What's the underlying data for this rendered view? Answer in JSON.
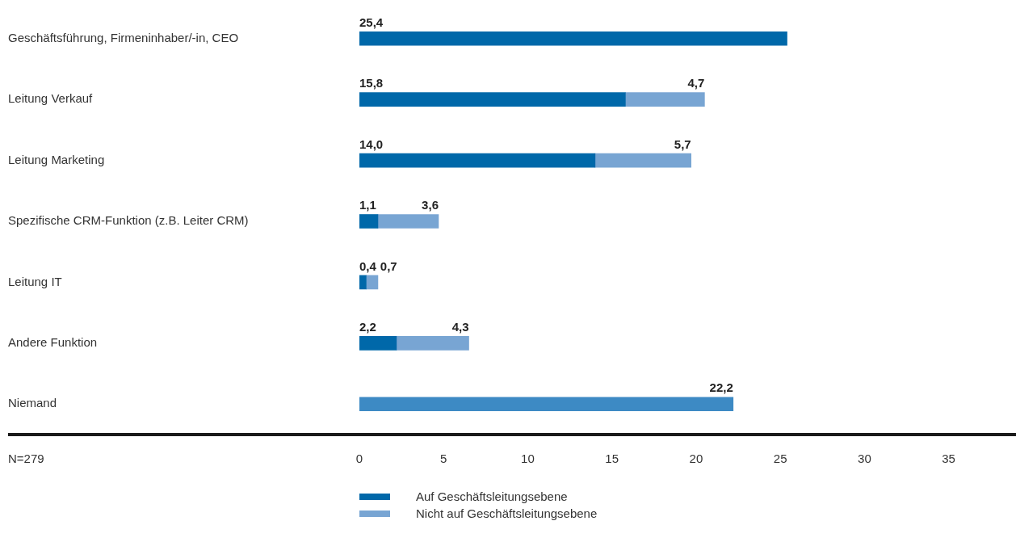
{
  "chart_data": {
    "type": "bar",
    "orientation": "horizontal",
    "stacked": true,
    "categories": [
      "Geschäftsführung, Firmeninhaber/-in, CEO",
      "Leitung Verkauf",
      "Leitung Marketing",
      "Spezifische CRM-Funktion (z.B. Leiter CRM)",
      "Leitung IT",
      "Andere Funktion",
      "Niemand"
    ],
    "series": [
      {
        "name": "Auf Geschäftsleitungsebene",
        "color": "#0068a9",
        "values": [
          25.4,
          15.8,
          14.0,
          1.1,
          0.4,
          2.2,
          null
        ],
        "value_labels": [
          "25,4",
          "15,8",
          "14,0",
          "1,1",
          "0,4",
          "2,2",
          null
        ]
      },
      {
        "name": "Nicht auf Geschäftsleitungsebene",
        "color": "#78a5d3",
        "values": [
          null,
          4.7,
          5.7,
          3.6,
          0.7,
          4.3,
          null
        ],
        "value_labels": [
          null,
          "4,7",
          "5,7",
          "3,6",
          "0,7",
          "4,3",
          null
        ]
      },
      {
        "color": "#3d8ac4",
        "values": [
          null,
          null,
          null,
          null,
          null,
          null,
          22.2
        ],
        "value_labels": [
          null,
          null,
          null,
          null,
          null,
          null,
          "22,2"
        ]
      }
    ],
    "xlim": [
      0,
      39
    ],
    "xticks": [
      0,
      5,
      10,
      15,
      20,
      25,
      30,
      35
    ],
    "grid": false,
    "legend": "bottom",
    "annotations": [
      "N=279"
    ]
  }
}
